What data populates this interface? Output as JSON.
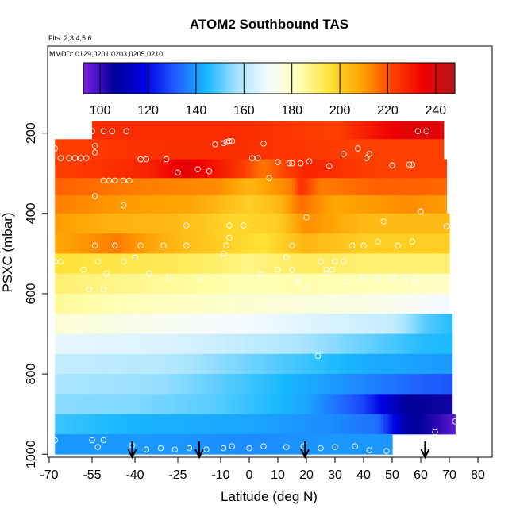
{
  "chart_data": {
    "type": "heatmap",
    "title": "ATOM2 Southbound TAS",
    "subtitle_flights": "Flts: 2,3,4,5,6",
    "subtitle_dates": "MMDD: 0129,0201,0203,0205,0210",
    "xlabel": "Latitude (deg N)",
    "ylabel": "PSXC (mbar)",
    "xlim": [
      -70,
      85
    ],
    "ylim": [
      1000,
      0
    ],
    "x_ticks": [
      -70,
      -55,
      -40,
      -25,
      -10,
      0,
      10,
      20,
      30,
      40,
      50,
      60,
      70,
      80
    ],
    "x_tick_labels": [
      "-70",
      "-55",
      "-40",
      "-25",
      "-10",
      "0",
      "10",
      "20",
      "30",
      "40",
      "50",
      "60",
      "70",
      "80"
    ],
    "y_ticks": [
      200,
      400,
      600,
      800,
      1000
    ],
    "y_tick_labels": [
      "200",
      "400",
      "600",
      "800",
      "1000"
    ],
    "colorbar": {
      "min": 93,
      "max": 248,
      "ticks": [
        100,
        120,
        140,
        160,
        180,
        200,
        220,
        240
      ],
      "tick_labels": [
        "100",
        "120",
        "140",
        "160",
        "180",
        "200",
        "220",
        "240"
      ],
      "colors": [
        "#7a1fe0",
        "#00009a",
        "#0000e6",
        "#2060ff",
        "#18b8ff",
        "#a8e4ff",
        "#f6fbff",
        "#ffffb0",
        "#ffe033",
        "#ffa000",
        "#ff4000",
        "#f00000",
        "#b01818"
      ]
    },
    "rows": [
      {
        "p_top": 170,
        "p_bot": 215,
        "lat_start": -55,
        "lat_end": 68,
        "cells": [
          [
            -55,
            226
          ],
          [
            0,
            226
          ],
          [
            30,
            222
          ],
          [
            55,
            238
          ],
          [
            68,
            238
          ]
        ]
      },
      {
        "p_top": 215,
        "p_bot": 265,
        "lat_start": -68,
        "lat_end": 68,
        "cells": [
          [
            -68,
            222
          ],
          [
            -40,
            225
          ],
          [
            -10,
            226
          ],
          [
            20,
            224
          ],
          [
            40,
            222
          ],
          [
            68,
            222
          ]
        ]
      },
      {
        "p_top": 265,
        "p_bot": 312,
        "lat_start": -68,
        "lat_end": 69,
        "cells": [
          [
            -68,
            222
          ],
          [
            -35,
            228
          ],
          [
            -22,
            238
          ],
          [
            -5,
            226
          ],
          [
            5,
            215
          ],
          [
            20,
            228
          ],
          [
            45,
            222
          ],
          [
            69,
            222
          ]
        ]
      },
      {
        "p_top": 312,
        "p_bot": 355,
        "lat_start": -68,
        "lat_end": 69,
        "cells": [
          [
            -68,
            218
          ],
          [
            -40,
            214
          ],
          [
            -10,
            212
          ],
          [
            0,
            205
          ],
          [
            15,
            214
          ],
          [
            18,
            226
          ],
          [
            25,
            214
          ],
          [
            45,
            218
          ],
          [
            69,
            217
          ]
        ]
      },
      {
        "p_top": 355,
        "p_bot": 400,
        "lat_start": -68,
        "lat_end": 69,
        "cells": [
          [
            -68,
            214
          ],
          [
            -45,
            210
          ],
          [
            -20,
            208
          ],
          [
            0,
            200
          ],
          [
            10,
            204
          ],
          [
            18,
            216
          ],
          [
            30,
            208
          ],
          [
            55,
            212
          ],
          [
            69,
            210
          ]
        ]
      },
      {
        "p_top": 400,
        "p_bot": 450,
        "lat_start": -68,
        "lat_end": 70,
        "cells": [
          [
            -68,
            210
          ],
          [
            -50,
            206
          ],
          [
            -25,
            204
          ],
          [
            -5,
            198
          ],
          [
            10,
            200
          ],
          [
            20,
            212
          ],
          [
            40,
            204
          ],
          [
            70,
            204
          ]
        ]
      },
      {
        "p_top": 450,
        "p_bot": 500,
        "lat_start": -68,
        "lat_end": 70,
        "cells": [
          [
            -68,
            208
          ],
          [
            -46,
            214
          ],
          [
            -30,
            206
          ],
          [
            -10,
            200
          ],
          [
            5,
            196
          ],
          [
            20,
            205
          ],
          [
            40,
            200
          ],
          [
            70,
            200
          ]
        ]
      },
      {
        "p_top": 500,
        "p_bot": 550,
        "lat_start": -68,
        "lat_end": 70,
        "cells": [
          [
            -68,
            196
          ],
          [
            -45,
            194
          ],
          [
            -20,
            192
          ],
          [
            0,
            188
          ],
          [
            20,
            192
          ],
          [
            40,
            190
          ],
          [
            70,
            190
          ]
        ]
      },
      {
        "p_top": 550,
        "p_bot": 600,
        "lat_start": -68,
        "lat_end": 70,
        "cells": [
          [
            -68,
            190
          ],
          [
            -50,
            188
          ],
          [
            -30,
            186
          ],
          [
            0,
            183
          ],
          [
            20,
            184
          ],
          [
            45,
            182
          ],
          [
            70,
            180
          ]
        ]
      },
      {
        "p_top": 600,
        "p_bot": 650,
        "lat_start": -68,
        "lat_end": 70,
        "cells": [
          [
            -68,
            186
          ],
          [
            -40,
            182
          ],
          [
            0,
            178
          ],
          [
            40,
            175
          ],
          [
            70,
            170
          ]
        ]
      },
      {
        "p_top": 650,
        "p_bot": 700,
        "lat_start": -68,
        "lat_end": 71,
        "cells": [
          [
            -68,
            178
          ],
          [
            -40,
            174
          ],
          [
            0,
            170
          ],
          [
            50,
            162
          ],
          [
            62,
            150
          ],
          [
            71,
            146
          ]
        ]
      },
      {
        "p_top": 700,
        "p_bot": 750,
        "lat_start": -68,
        "lat_end": 71,
        "cells": [
          [
            -68,
            168
          ],
          [
            -30,
            166
          ],
          [
            10,
            160
          ],
          [
            40,
            152
          ],
          [
            60,
            146
          ],
          [
            71,
            145
          ]
        ]
      },
      {
        "p_top": 750,
        "p_bot": 800,
        "lat_start": -68,
        "lat_end": 71,
        "cells": [
          [
            -68,
            162
          ],
          [
            -30,
            160
          ],
          [
            10,
            150
          ],
          [
            40,
            143
          ],
          [
            71,
            140
          ]
        ]
      },
      {
        "p_top": 800,
        "p_bot": 850,
        "lat_start": -68,
        "lat_end": 71,
        "cells": [
          [
            -68,
            158
          ],
          [
            -30,
            156
          ],
          [
            0,
            148
          ],
          [
            30,
            140
          ],
          [
            60,
            132
          ],
          [
            71,
            130
          ]
        ]
      },
      {
        "p_top": 850,
        "p_bot": 900,
        "lat_start": -68,
        "lat_end": 71,
        "cells": [
          [
            -68,
            155
          ],
          [
            -40,
            154
          ],
          [
            -10,
            150
          ],
          [
            20,
            142
          ],
          [
            40,
            128
          ],
          [
            55,
            106
          ],
          [
            71,
            104
          ]
        ]
      },
      {
        "p_top": 900,
        "p_bot": 950,
        "lat_start": -68,
        "lat_end": 72,
        "cells": [
          [
            -68,
            148
          ],
          [
            -40,
            144
          ],
          [
            0,
            142
          ],
          [
            30,
            138
          ],
          [
            45,
            134
          ],
          [
            55,
            108
          ],
          [
            65,
            102
          ],
          [
            72,
            96
          ]
        ]
      },
      {
        "p_top": 950,
        "p_bot": 1000,
        "lat_start": -68,
        "lat_end": 50,
        "cells": [
          [
            -68,
            140
          ],
          [
            -30,
            140
          ],
          [
            0,
            138
          ],
          [
            30,
            140
          ],
          [
            50,
            140
          ]
        ]
      }
    ],
    "scatter": [
      [
        -68,
        238
      ],
      [
        -55,
        195
      ],
      [
        -51,
        195
      ],
      [
        -48,
        195
      ],
      [
        -43,
        195
      ],
      [
        -12,
        228
      ],
      [
        -9,
        225
      ],
      [
        -8,
        222
      ],
      [
        -7,
        220
      ],
      [
        -6,
        220
      ],
      [
        5,
        226
      ],
      [
        38,
        238
      ],
      [
        59,
        195
      ],
      [
        62,
        195
      ],
      [
        -66,
        262
      ],
      [
        -63,
        262
      ],
      [
        -61,
        262
      ],
      [
        -59,
        262
      ],
      [
        -57,
        262
      ],
      [
        -54,
        232
      ],
      [
        -54,
        248
      ],
      [
        -38,
        265
      ],
      [
        -36,
        265
      ],
      [
        -29,
        265
      ],
      [
        -18,
        290
      ],
      [
        1,
        262
      ],
      [
        3,
        262
      ],
      [
        14,
        275
      ],
      [
        18,
        275
      ],
      [
        21,
        270
      ],
      [
        28,
        282
      ],
      [
        33,
        252
      ],
      [
        41,
        262
      ],
      [
        42,
        252
      ],
      [
        50,
        280
      ],
      [
        56,
        278
      ],
      [
        57,
        278
      ],
      [
        -51,
        318
      ],
      [
        -49,
        318
      ],
      [
        -47,
        318
      ],
      [
        -44,
        318
      ],
      [
        -42,
        318
      ],
      [
        -38,
        265
      ],
      [
        -25,
        298
      ],
      [
        -14,
        295
      ],
      [
        10,
        272
      ],
      [
        7,
        312
      ],
      [
        15,
        275
      ],
      [
        -54,
        357
      ],
      [
        -44,
        380
      ],
      [
        -22,
        430
      ],
      [
        -7,
        430
      ],
      [
        -7,
        460
      ],
      [
        20,
        410
      ],
      [
        47,
        420
      ],
      [
        60,
        395
      ],
      [
        69,
        432
      ],
      [
        -54,
        480
      ],
      [
        -53,
        520
      ],
      [
        -47,
        480
      ],
      [
        -44,
        520
      ],
      [
        -38,
        480
      ],
      [
        -30,
        480
      ],
      [
        -22,
        480
      ],
      [
        -9,
        500
      ],
      [
        -8,
        480
      ],
      [
        -2,
        430
      ],
      [
        13,
        510
      ],
      [
        15,
        480
      ],
      [
        25,
        520
      ],
      [
        27,
        540
      ],
      [
        29,
        540
      ],
      [
        33,
        520
      ],
      [
        36,
        480
      ],
      [
        40,
        480
      ],
      [
        45,
        470
      ],
      [
        52,
        480
      ],
      [
        57,
        470
      ],
      [
        -68,
        520
      ],
      [
        -66,
        520
      ],
      [
        -58,
        540
      ],
      [
        -50,
        550
      ],
      [
        -40,
        510
      ],
      [
        -35,
        550
      ],
      [
        -28,
        560
      ],
      [
        -17,
        560
      ],
      [
        4,
        552
      ],
      [
        10,
        540
      ],
      [
        13,
        510
      ],
      [
        15,
        540
      ],
      [
        17,
        560
      ],
      [
        27,
        550
      ],
      [
        30,
        520
      ],
      [
        34,
        570
      ],
      [
        40,
        560
      ],
      [
        45,
        560
      ],
      [
        50,
        560
      ],
      [
        55,
        560
      ],
      [
        58,
        570
      ],
      [
        -56,
        590
      ],
      [
        -51,
        590
      ],
      [
        17,
        572
      ],
      [
        20,
        585
      ],
      [
        24,
        755
      ],
      [
        65,
        945
      ],
      [
        72,
        918
      ],
      [
        -68,
        965
      ],
      [
        -55,
        965
      ],
      [
        -53,
        982
      ],
      [
        -51,
        965
      ],
      [
        -41,
        978
      ],
      [
        -36,
        988
      ],
      [
        -31,
        985
      ],
      [
        -26,
        988
      ],
      [
        -21,
        985
      ],
      [
        -15,
        988
      ],
      [
        -9,
        985
      ],
      [
        -6,
        980
      ],
      [
        0,
        985
      ],
      [
        5,
        980
      ],
      [
        13,
        982
      ],
      [
        19,
        980
      ],
      [
        25,
        985
      ],
      [
        30,
        982
      ],
      [
        37,
        980
      ],
      [
        42,
        990
      ],
      [
        48,
        992
      ]
    ],
    "arrows_lat": [
      -41,
      -17.5,
      19.5,
      61.5
    ]
  }
}
